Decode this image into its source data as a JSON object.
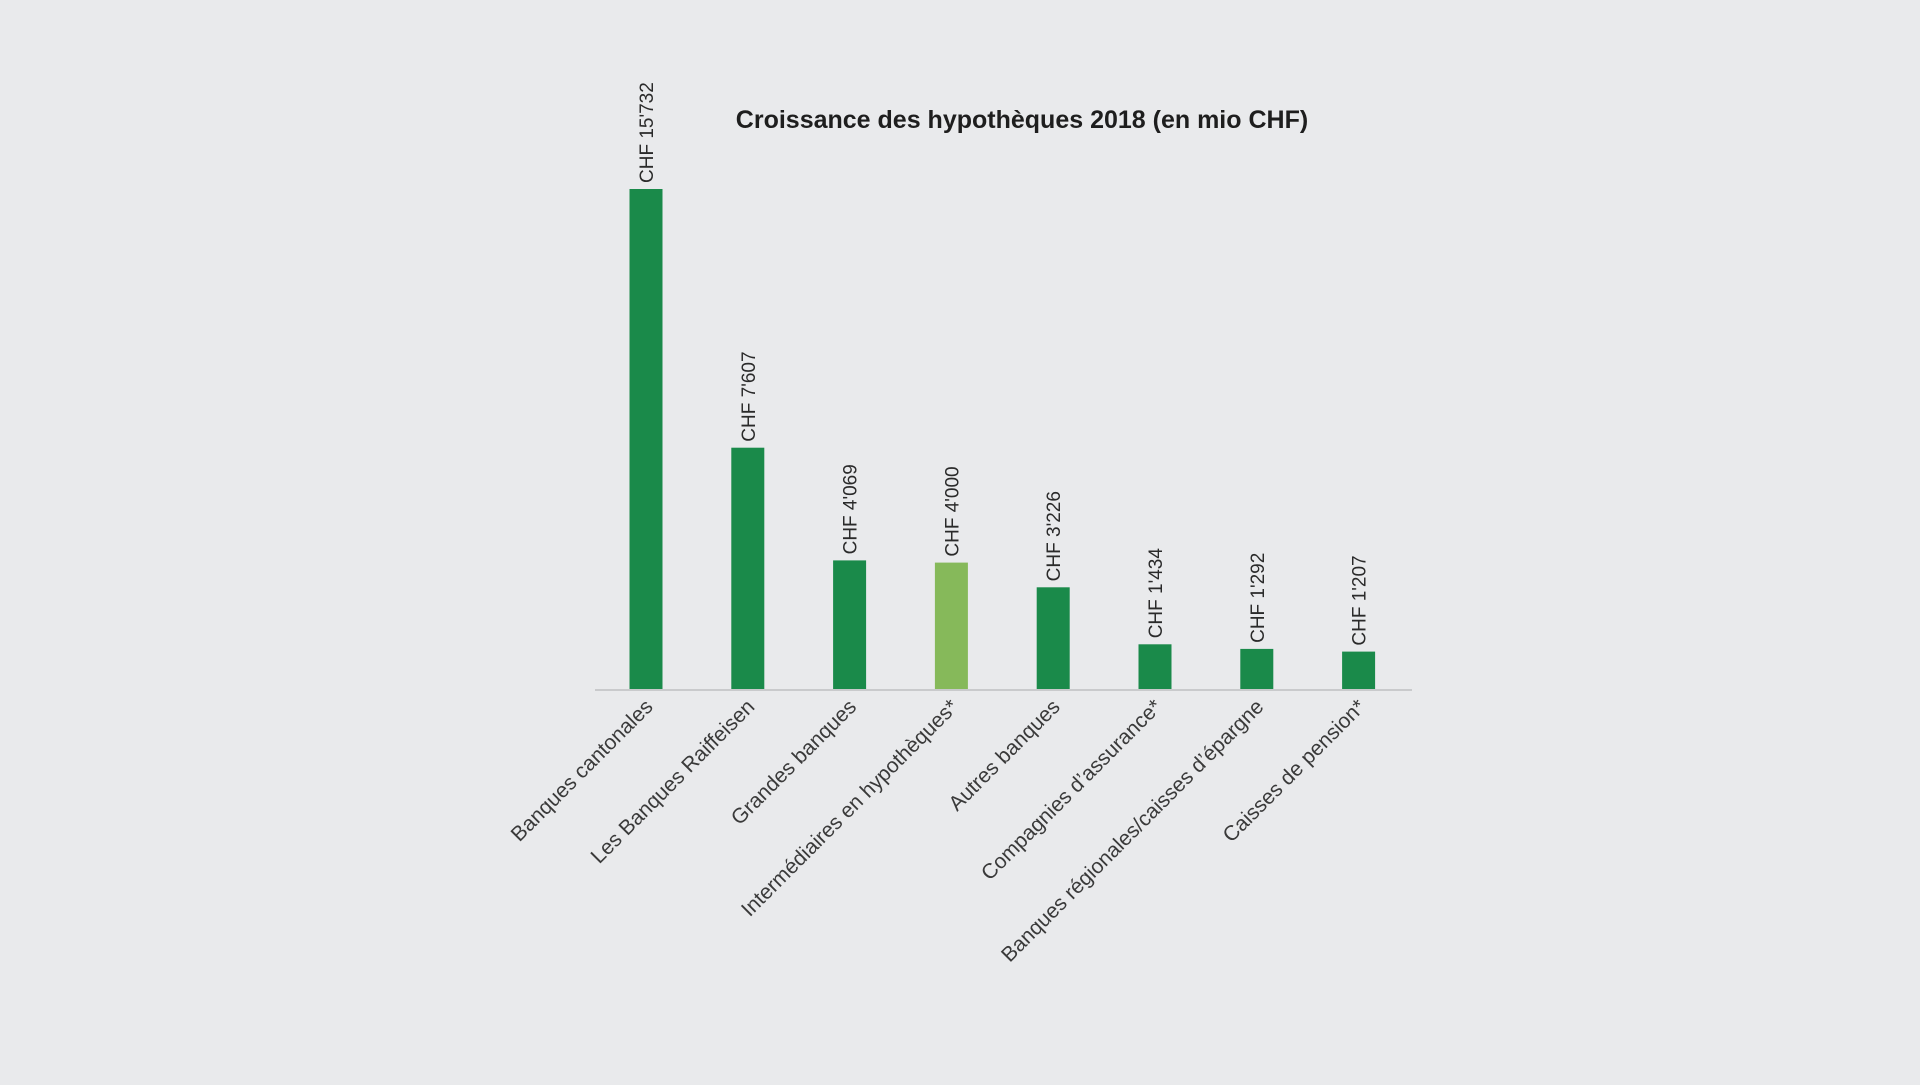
{
  "chart_data": {
    "type": "bar",
    "title": "Croissance des hypothèques 2018 (en mio CHF)",
    "xlabel": "",
    "ylabel": "",
    "grid": false,
    "legend": "none",
    "ylim": [
      0,
      16000
    ],
    "categories": [
      "Banques cantonales",
      "Les Banques Raiffeisen",
      "Grandes banques",
      "Intermédiaires en hypothèques*",
      "Autres banques",
      "Compagnies d’assurance*",
      "Banques régionales/caisses d’épargne",
      "Caisses de pension*"
    ],
    "values": [
      15732,
      7607,
      4069,
      4000,
      3226,
      1434,
      1292,
      1207
    ],
    "data_labels": [
      "CHF 15'732",
      "CHF 7'607",
      "CHF 4'069",
      "CHF 4'000",
      "CHF 3'226",
      "CHF 1'434",
      "CHF 1'292",
      "CHF 1'207"
    ],
    "bar_colors": [
      "#1a8a4a",
      "#1a8a4a",
      "#1a8a4a",
      "#86b95a",
      "#1a8a4a",
      "#1a8a4a",
      "#1a8a4a",
      "#1a8a4a"
    ],
    "colors": {
      "background": "#e9eaec",
      "primary_bar": "#1a8a4a",
      "highlight_bar": "#86b95a",
      "axis": "#c9cacc",
      "text": "#2a2a2a"
    }
  }
}
